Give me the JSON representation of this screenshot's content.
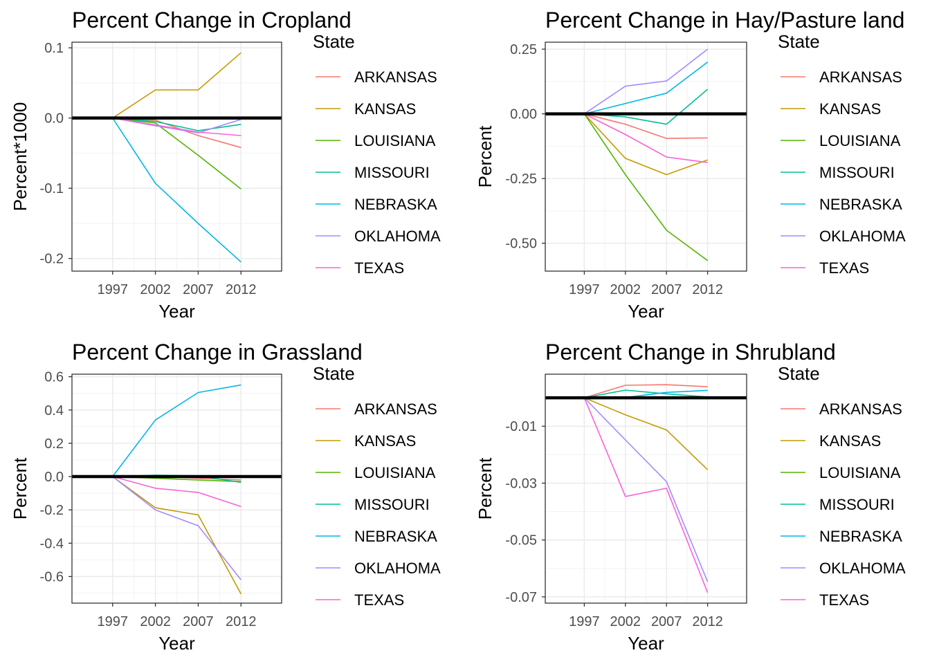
{
  "chart_data": [
    {
      "type": "line",
      "title": "Percent Change in Cropland",
      "xlabel": "Year",
      "ylabel": "Percent*1000",
      "x": [
        1997,
        2002,
        2007,
        2012
      ],
      "xlim": [
        1992.25,
        2016.75
      ],
      "ylim": [
        -0.218,
        0.108
      ],
      "yticks": [
        -0.2,
        -0.1,
        0.0,
        0.1
      ],
      "ytick_labels": [
        "-0.2",
        "-0.1",
        "0.0",
        "0.1"
      ],
      "grid": true,
      "reference_line": 0,
      "legend": {
        "title": "State",
        "position": "right"
      },
      "series": [
        {
          "name": "ARKANSAS",
          "color": "#F8766D",
          "values": [
            0,
            -0.003,
            -0.025,
            -0.042
          ]
        },
        {
          "name": "KANSAS",
          "color": "#C49A00",
          "values": [
            0,
            0.04,
            0.04,
            0.093
          ]
        },
        {
          "name": "LOUISIANA",
          "color": "#53B400",
          "values": [
            0,
            -0.007,
            -0.053,
            -0.101
          ]
        },
        {
          "name": "MISSOURI",
          "color": "#00C094",
          "values": [
            0,
            -0.005,
            -0.018,
            -0.009
          ]
        },
        {
          "name": "NEBRASKA",
          "color": "#00B6EB",
          "values": [
            0,
            -0.093,
            -0.15,
            -0.205
          ]
        },
        {
          "name": "OKLAHOMA",
          "color": "#A58AFF",
          "values": [
            0,
            -0.011,
            -0.021,
            -0.002
          ]
        },
        {
          "name": "TEXAS",
          "color": "#FB61D7",
          "values": [
            0,
            -0.01,
            -0.02,
            -0.025
          ]
        }
      ]
    },
    {
      "type": "line",
      "title": "Percent Change in Hay/Pasture land",
      "xlabel": "Year",
      "ylabel": "Percent",
      "x": [
        1997,
        2002,
        2007,
        2012
      ],
      "xlim": [
        1992.25,
        2016.75
      ],
      "ylim": [
        -0.608,
        0.277
      ],
      "yticks": [
        -0.5,
        -0.25,
        0.0,
        0.25
      ],
      "ytick_labels": [
        "-0.50",
        "-0.25",
        "0.00",
        "0.25"
      ],
      "grid": true,
      "reference_line": 0,
      "legend": {
        "title": "State",
        "position": "right"
      },
      "series": [
        {
          "name": "ARKANSAS",
          "color": "#F8766D",
          "values": [
            0,
            -0.04,
            -0.095,
            -0.093
          ]
        },
        {
          "name": "KANSAS",
          "color": "#C49A00",
          "values": [
            0,
            -0.172,
            -0.235,
            -0.178
          ]
        },
        {
          "name": "LOUISIANA",
          "color": "#53B400",
          "values": [
            0,
            -0.235,
            -0.45,
            -0.567
          ]
        },
        {
          "name": "MISSOURI",
          "color": "#00C094",
          "values": [
            0,
            -0.012,
            -0.04,
            0.095
          ]
        },
        {
          "name": "NEBRASKA",
          "color": "#00B6EB",
          "values": [
            0,
            0.04,
            0.08,
            0.2
          ]
        },
        {
          "name": "OKLAHOMA",
          "color": "#A58AFF",
          "values": [
            0,
            0.107,
            0.127,
            0.25
          ]
        },
        {
          "name": "TEXAS",
          "color": "#FB61D7",
          "values": [
            0,
            -0.08,
            -0.167,
            -0.188
          ]
        }
      ]
    },
    {
      "type": "line",
      "title": "Percent Change in Grassland",
      "xlabel": "Year",
      "ylabel": "Percent",
      "x": [
        1997,
        2002,
        2007,
        2012
      ],
      "xlim": [
        1992.25,
        2016.75
      ],
      "ylim": [
        -0.76,
        0.615
      ],
      "yticks": [
        -0.6,
        -0.4,
        -0.2,
        0.0,
        0.2,
        0.4,
        0.6
      ],
      "ytick_labels": [
        "-0.6",
        "-0.4",
        "-0.2",
        "0.0",
        "0.2",
        "0.4",
        "0.6"
      ],
      "grid": true,
      "reference_line": 0,
      "legend": {
        "title": "State",
        "position": "right"
      },
      "series": [
        {
          "name": "ARKANSAS",
          "color": "#F8766D",
          "values": [
            0,
            0.002,
            -0.01,
            -0.02
          ]
        },
        {
          "name": "KANSAS",
          "color": "#C49A00",
          "values": [
            0,
            -0.187,
            -0.23,
            -0.705
          ]
        },
        {
          "name": "LOUISIANA",
          "color": "#53B400",
          "values": [
            0,
            -0.01,
            -0.02,
            -0.03
          ]
        },
        {
          "name": "MISSOURI",
          "color": "#00C094",
          "values": [
            0,
            0.008,
            0.005,
            -0.035
          ]
        },
        {
          "name": "NEBRASKA",
          "color": "#00B6EB",
          "values": [
            0,
            0.34,
            0.505,
            0.55
          ]
        },
        {
          "name": "OKLAHOMA",
          "color": "#A58AFF",
          "values": [
            0,
            -0.2,
            -0.295,
            -0.62
          ]
        },
        {
          "name": "TEXAS",
          "color": "#FB61D7",
          "values": [
            0,
            -0.07,
            -0.095,
            -0.18
          ]
        }
      ]
    },
    {
      "type": "line",
      "title": "Percent Change in Shrubland",
      "xlabel": "Year",
      "ylabel": "Percent",
      "x": [
        1997,
        2002,
        2007,
        2012
      ],
      "xlim": [
        1992.25,
        2016.75
      ],
      "ylim": [
        -0.0722,
        0.0083
      ],
      "yticks": [
        -0.07,
        -0.05,
        -0.03,
        -0.01
      ],
      "ytick_labels": [
        "-0.07",
        "-0.05",
        "-0.03",
        "-0.01"
      ],
      "grid": true,
      "reference_line": 0,
      "legend": {
        "title": "State",
        "position": "right"
      },
      "series": [
        {
          "name": "ARKANSAS",
          "color": "#F8766D",
          "values": [
            0,
            0.0044,
            0.0046,
            0.0039
          ]
        },
        {
          "name": "KANSAS",
          "color": "#C49A00",
          "values": [
            0,
            -0.006,
            -0.0113,
            -0.0253
          ]
        },
        {
          "name": "LOUISIANA",
          "color": "#53B400",
          "values": [
            0,
            0.0,
            -0.0002,
            -0.0003
          ]
        },
        {
          "name": "MISSOURI",
          "color": "#00C094",
          "values": [
            0,
            0.0027,
            0.0014,
            0.0003
          ]
        },
        {
          "name": "NEBRASKA",
          "color": "#00B6EB",
          "values": [
            0,
            0.0001,
            0.0019,
            0.0026
          ]
        },
        {
          "name": "OKLAHOMA",
          "color": "#A58AFF",
          "values": [
            0,
            -0.0148,
            -0.0295,
            -0.0647
          ]
        },
        {
          "name": "TEXAS",
          "color": "#FB61D7",
          "values": [
            0,
            -0.0347,
            -0.0318,
            -0.0685
          ]
        }
      ]
    }
  ]
}
